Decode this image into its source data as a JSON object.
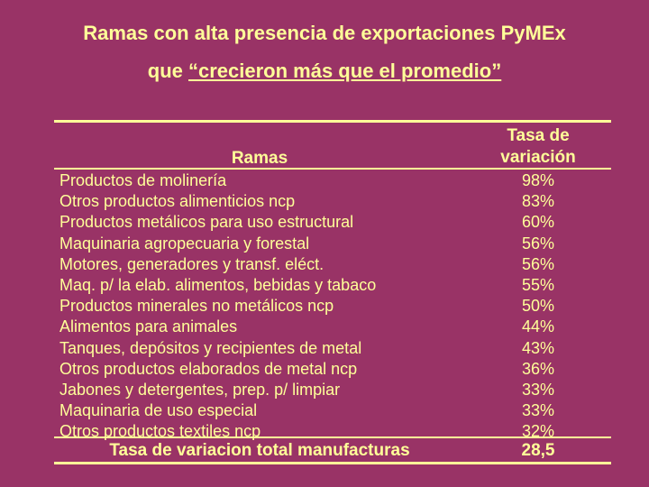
{
  "title": {
    "line1": "Ramas con alta presencia de exportaciones PyMEx",
    "line2_prefix": "que ",
    "line2_underlined": "“crecieron más que el promedio”"
  },
  "table": {
    "header_rama": "Ramas",
    "header_tasa_1": "Tasa de",
    "header_tasa_2": "variación",
    "rows": [
      {
        "name": "Productos de molinería",
        "value": "98%"
      },
      {
        "name": "Otros productos alimenticios ncp",
        "value": "83%"
      },
      {
        "name": "Productos metálicos para uso estructural",
        "value": "60%"
      },
      {
        "name": "Maquinaria agropecuaria y forestal",
        "value": "56%"
      },
      {
        "name": "Motores, generadores y transf. eléct.",
        "value": "56%"
      },
      {
        "name": "Maq. p/ la elab. alimentos, bebidas y tabaco",
        "value": "55%"
      },
      {
        "name": "Productos minerales no metálicos ncp",
        "value": "50%"
      },
      {
        "name": "Alimentos  para animales",
        "value": "44%"
      },
      {
        "name": "Tanques, depósitos y recipientes de metal",
        "value": "43%"
      },
      {
        "name": "Otros productos elaborados de metal ncp",
        "value": "36%"
      },
      {
        "name": "Jabones y detergentes, prep. p/ limpiar",
        "value": "33%"
      },
      {
        "name": "Maquinaria de uso especial",
        "value": "33%"
      },
      {
        "name": "Otros productos textiles ncp",
        "value": "32%"
      }
    ],
    "total_label": "Tasa de variacion total manufacturas",
    "total_value": "28,5"
  },
  "colors": {
    "background": "#993366",
    "text": "#ffff99"
  }
}
